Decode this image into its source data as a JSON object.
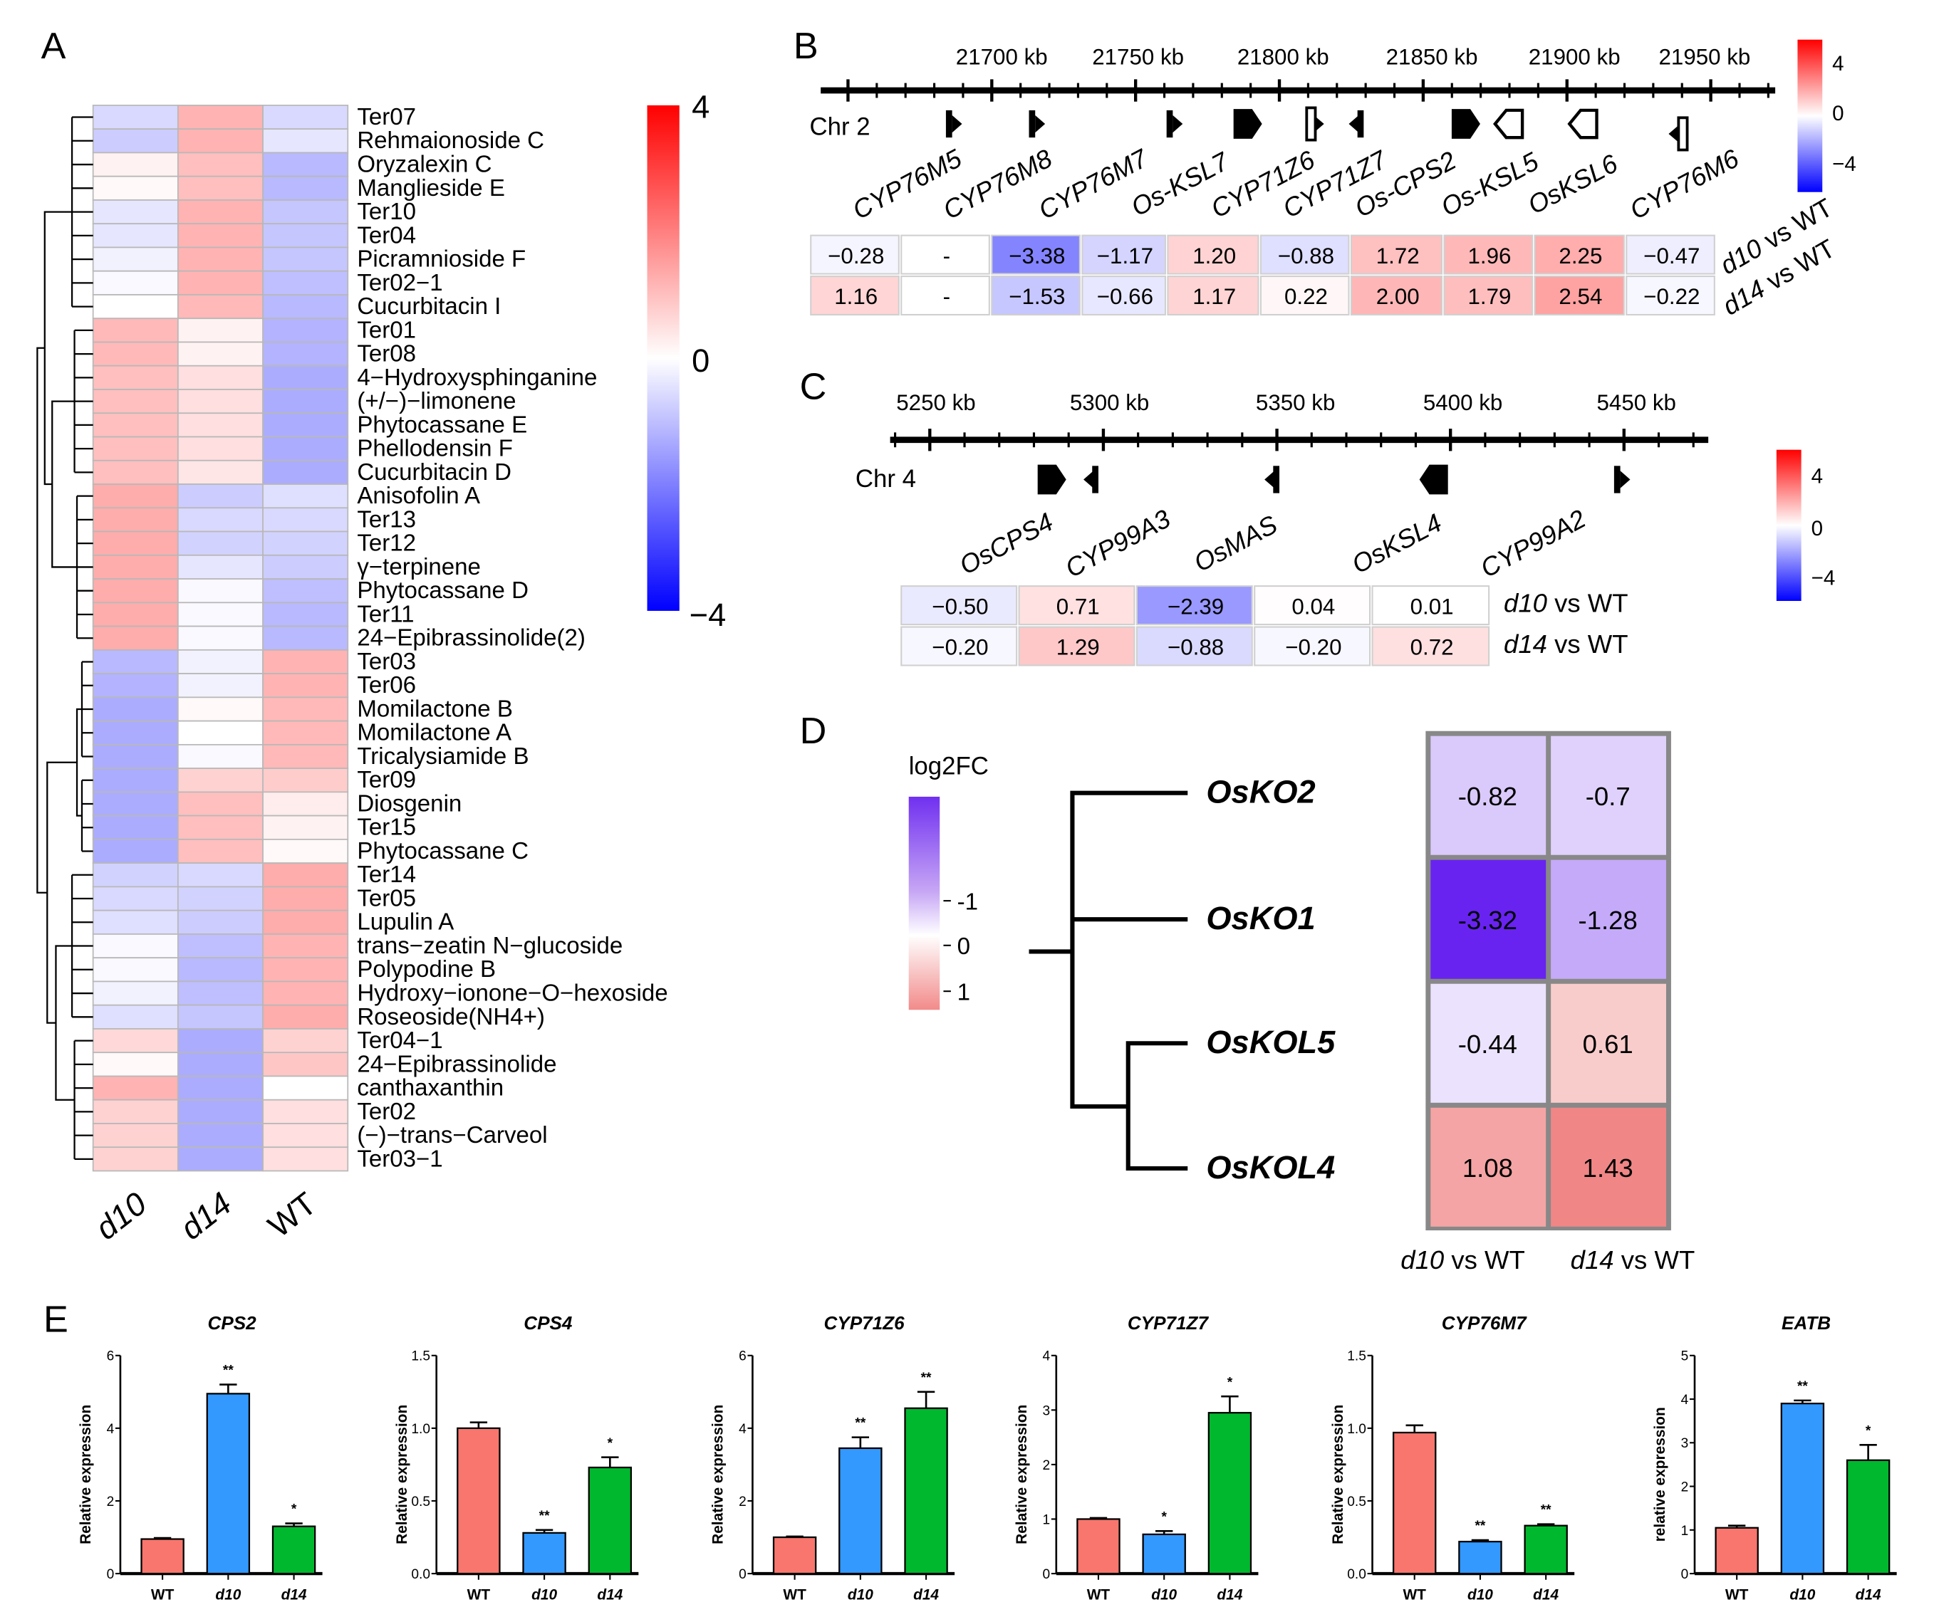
{
  "panel_labels": {
    "A": "A",
    "B": "B",
    "C": "C",
    "D": "D",
    "E": "E"
  },
  "chart_data": [
    {
      "type": "heatmap",
      "panel": "A",
      "columns": [
        "d10",
        "d14",
        "WT"
      ],
      "rows": [
        "Ter07",
        "Rehmaionoside C",
        "Oryzalexin C",
        "Manglieside E",
        "Ter10",
        "Ter04",
        "Picramnioside F",
        "Ter02−1",
        "Cucurbitacin I",
        "Ter01",
        "Ter08",
        "4−Hydroxysphinganine",
        "(+/−)−limonene",
        "Phytocassane E",
        "Phellodensin F",
        "Cucurbitacin D",
        "Anisofolin A",
        "Ter13",
        "Ter12",
        "γ−terpinene",
        "Phytocassane D",
        "Ter11",
        "24−Epibrassinolide(2)",
        "Ter03",
        "Ter06",
        "Momilactone B",
        "Momilactone A",
        "Tricalysiamide B",
        "Ter09",
        "Diosgenin",
        "Ter15",
        "Phytocassane C",
        "Ter14",
        "Ter05",
        "Lupulin A",
        "trans−zeatin N−glucoside",
        "Polypodine B",
        "Hydroxy−ionone−O−hexoside",
        "Roseoside(NH4+)",
        "Ter04−1",
        "24−Epibrassinolide",
        "canthaxanthin",
        "Ter02",
        "(−)−trans−Carveol",
        "Ter03−1"
      ],
      "values": [
        [
          -0.6,
          1.2,
          -0.6
        ],
        [
          -0.8,
          1.2,
          -0.4
        ],
        [
          0.2,
          1.0,
          -1.1
        ],
        [
          0.1,
          1.0,
          -1.1
        ],
        [
          -0.4,
          1.2,
          -0.9
        ],
        [
          -0.4,
          1.2,
          -0.9
        ],
        [
          -0.2,
          1.2,
          -0.9
        ],
        [
          -0.1,
          1.2,
          -1.0
        ],
        [
          0,
          1.1,
          -1.1
        ],
        [
          1.1,
          0.2,
          -1.2
        ],
        [
          1.1,
          0.2,
          -1.2
        ],
        [
          1.0,
          0.5,
          -1.3
        ],
        [
          1.0,
          0.5,
          -1.3
        ],
        [
          1.0,
          0.5,
          -1.3
        ],
        [
          1.0,
          0.5,
          -1.3
        ],
        [
          1.0,
          0.4,
          -1.3
        ],
        [
          1.3,
          -0.8,
          -0.5
        ],
        [
          1.3,
          -0.6,
          -0.6
        ],
        [
          1.3,
          -0.7,
          -0.7
        ],
        [
          1.3,
          -0.4,
          -0.8
        ],
        [
          1.3,
          -0.1,
          -1.0
        ],
        [
          1.3,
          -0.1,
          -1.1
        ],
        [
          1.3,
          -0.1,
          -1.1
        ],
        [
          -1.1,
          -0.2,
          1.2
        ],
        [
          -1.2,
          -0.2,
          1.2
        ],
        [
          -1.3,
          0.1,
          1.1
        ],
        [
          -1.3,
          0,
          1.1
        ],
        [
          -1.3,
          -0.1,
          1.1
        ],
        [
          -1.3,
          0.7,
          0.8
        ],
        [
          -1.3,
          1.0,
          0.3
        ],
        [
          -1.3,
          1.0,
          0.2
        ],
        [
          -1.3,
          1.0,
          0.1
        ],
        [
          -0.7,
          -0.6,
          1.3
        ],
        [
          -0.6,
          -0.7,
          1.3
        ],
        [
          -0.5,
          -0.8,
          1.3
        ],
        [
          -0.1,
          -1.0,
          1.2
        ],
        [
          -0.1,
          -1.1,
          1.2
        ],
        [
          -0.2,
          -1.0,
          1.2
        ],
        [
          -0.5,
          -0.9,
          1.3
        ],
        [
          0.6,
          -1.3,
          0.7
        ],
        [
          0.1,
          -1.3,
          0.9
        ],
        [
          1.2,
          -1.3,
          0
        ],
        [
          0.7,
          -1.3,
          0.5
        ],
        [
          0.7,
          -1.3,
          0.5
        ],
        [
          0.7,
          -1.3,
          0.5
        ]
      ],
      "colorbar": {
        "ticks": [
          "4",
          "0",
          "−4"
        ],
        "range": [
          -4,
          4
        ],
        "low": "#0000ff",
        "mid": "#ffffff",
        "high": "#ff0000"
      }
    },
    {
      "type": "table",
      "panel": "B",
      "chromosome": "Chr 2",
      "axis_ticks": [
        "21700 kb",
        "21750 kb",
        "21800 kb",
        "21850 kb",
        "21900 kb",
        "21950 kb"
      ],
      "genes": [
        "CYP76M5",
        "CYP76M8",
        "CYP76M7",
        "Os-KSL7",
        "CYP71Z6",
        "CYP71Z7",
        "Os-CPS2",
        "Os-KSL5",
        "OsKSL6",
        "CYP76M6"
      ],
      "strand": [
        "+",
        "+",
        "+",
        "+",
        "+",
        "-",
        "+",
        "-",
        "-",
        "-"
      ],
      "table_columns": [
        "CYP76M5",
        "CYP76M8",
        "CYP76M7",
        "Os-KSL7",
        "CYP71Z6",
        "CYP71Z7",
        "Os-CPS2",
        "Os-KSL5",
        "OsKSL6",
        "CYP76M6"
      ],
      "rows": [
        {
          "strain": "d10",
          "rest": " vs WT",
          "values": [
            "−0.28",
            "-",
            "−3.38",
            "−1.17",
            "1.20",
            "−0.88",
            "1.72",
            "1.96",
            "2.25",
            "−0.47"
          ],
          "num": [
            -0.28,
            null,
            -3.38,
            -1.17,
            1.2,
            -0.88,
            1.72,
            1.96,
            2.25,
            -0.47
          ]
        },
        {
          "strain": "d14",
          "rest": " vs WT",
          "values": [
            "1.16",
            "-",
            "−1.53",
            "−0.66",
            "1.17",
            "0.22",
            "2.00",
            "1.79",
            "2.54",
            "−0.22"
          ],
          "num": [
            1.16,
            null,
            -1.53,
            -0.66,
            1.17,
            0.22,
            2.0,
            1.79,
            2.54,
            -0.22
          ]
        }
      ],
      "colorbar": {
        "ticks": [
          "4",
          "0",
          "−4"
        ]
      }
    },
    {
      "type": "table",
      "panel": "C",
      "chromosome": "Chr 4",
      "axis_ticks": [
        "5250 kb",
        "5300 kb",
        "5350 kb",
        "5400 kb",
        "5450 kb"
      ],
      "genes": [
        "OsCPS4",
        "CYP99A3",
        "OsMAS",
        "OsKSL4",
        "CYP99A2"
      ],
      "strand": [
        "+",
        "-",
        "-",
        "-",
        "+"
      ],
      "rows": [
        {
          "strain": "d10",
          "rest": " vs WT",
          "values": [
            "−0.50",
            "0.71",
            "−2.39",
            "0.04",
            "0.01"
          ],
          "num": [
            -0.5,
            0.71,
            -2.39,
            0.04,
            0.01
          ]
        },
        {
          "strain": "d14",
          "rest": " vs WT",
          "values": [
            "−0.20",
            "1.29",
            "−0.88",
            "−0.20",
            "0.72"
          ],
          "num": [
            -0.2,
            1.29,
            -0.88,
            -0.2,
            0.72
          ]
        }
      ],
      "colorbar": {
        "ticks": [
          "4",
          "0",
          "−4"
        ]
      }
    },
    {
      "type": "heatmap",
      "panel": "D",
      "legend_title": "log2FC",
      "legend_ticks": [
        "-1",
        "0",
        "1"
      ],
      "rows": [
        "OsKO2",
        "OsKO1",
        "OsKOL5",
        "OsKOL4"
      ],
      "columns": [
        {
          "strain": "d10",
          "rest": " vs WT"
        },
        {
          "strain": "d14",
          "rest": " vs WT"
        }
      ],
      "values": [
        [
          "-0.82",
          "-0.7"
        ],
        [
          "-3.32",
          "-1.28"
        ],
        [
          "-0.44",
          "0.61"
        ],
        [
          "1.08",
          "1.43"
        ]
      ],
      "num": [
        [
          -0.82,
          -0.7
        ],
        [
          -3.32,
          -1.28
        ],
        [
          -0.44,
          0.61
        ],
        [
          1.08,
          1.43
        ]
      ]
    },
    {
      "type": "bar",
      "panel": "E",
      "categories": [
        "WT",
        "d10",
        "d14"
      ],
      "colors": [
        "#f8766d",
        "#3399ff",
        "#00b82e"
      ],
      "charts": [
        {
          "title": "CPS2",
          "ylabel": "Relative expression",
          "ylim": [
            0,
            6
          ],
          "yticks": [
            "0",
            "2",
            "4",
            "6"
          ],
          "ytick_values": [
            0,
            2,
            4,
            6
          ],
          "values": [
            0.95,
            4.95,
            1.3
          ],
          "errors": [
            0.03,
            0.25,
            0.08
          ],
          "sig": [
            "",
            "**",
            "*"
          ]
        },
        {
          "title": "CPS4",
          "ylabel": "Relative expression",
          "ylim": [
            0,
            1.5
          ],
          "yticks": [
            "0.0",
            "0.5",
            "1.0",
            "1.5"
          ],
          "ytick_values": [
            0,
            0.5,
            1.0,
            1.5
          ],
          "values": [
            1.0,
            0.28,
            0.73
          ],
          "errors": [
            0.04,
            0.02,
            0.07
          ],
          "sig": [
            "",
            "**",
            "*"
          ]
        },
        {
          "title": "CYP71Z6",
          "ylabel": "Relative expression",
          "ylim": [
            0,
            6
          ],
          "yticks": [
            "0",
            "2",
            "4",
            "6"
          ],
          "ytick_values": [
            0,
            2,
            4,
            6
          ],
          "values": [
            1.0,
            3.45,
            4.55
          ],
          "errors": [
            0.02,
            0.3,
            0.45
          ],
          "sig": [
            "",
            "**",
            "**"
          ]
        },
        {
          "title": "CYP71Z7",
          "ylabel": "Relative expression",
          "ylim": [
            0,
            4
          ],
          "yticks": [
            "0",
            "1",
            "2",
            "3",
            "4"
          ],
          "ytick_values": [
            0,
            1,
            2,
            3,
            4
          ],
          "values": [
            1.0,
            0.72,
            2.95
          ],
          "errors": [
            0.02,
            0.06,
            0.3
          ],
          "sig": [
            "",
            "*",
            "*"
          ]
        },
        {
          "title": "CYP76M7",
          "ylabel": "Relative expression",
          "ylim": [
            0,
            1.5
          ],
          "yticks": [
            "0.0",
            "0.5",
            "1.0",
            "1.5"
          ],
          "ytick_values": [
            0,
            0.5,
            1.0,
            1.5
          ],
          "values": [
            0.97,
            0.22,
            0.33
          ],
          "errors": [
            0.05,
            0.01,
            0.01
          ],
          "sig": [
            "",
            "**",
            "**"
          ]
        },
        {
          "title": "EATB",
          "ylabel": "relative expression",
          "ylim": [
            0,
            5
          ],
          "yticks": [
            "0",
            "1",
            "2",
            "3",
            "4",
            "5"
          ],
          "ytick_values": [
            0,
            1,
            2,
            3,
            4,
            5
          ],
          "values": [
            1.05,
            3.9,
            2.6
          ],
          "errors": [
            0.05,
            0.07,
            0.35
          ],
          "sig": [
            "",
            "**",
            "*"
          ]
        }
      ]
    }
  ]
}
